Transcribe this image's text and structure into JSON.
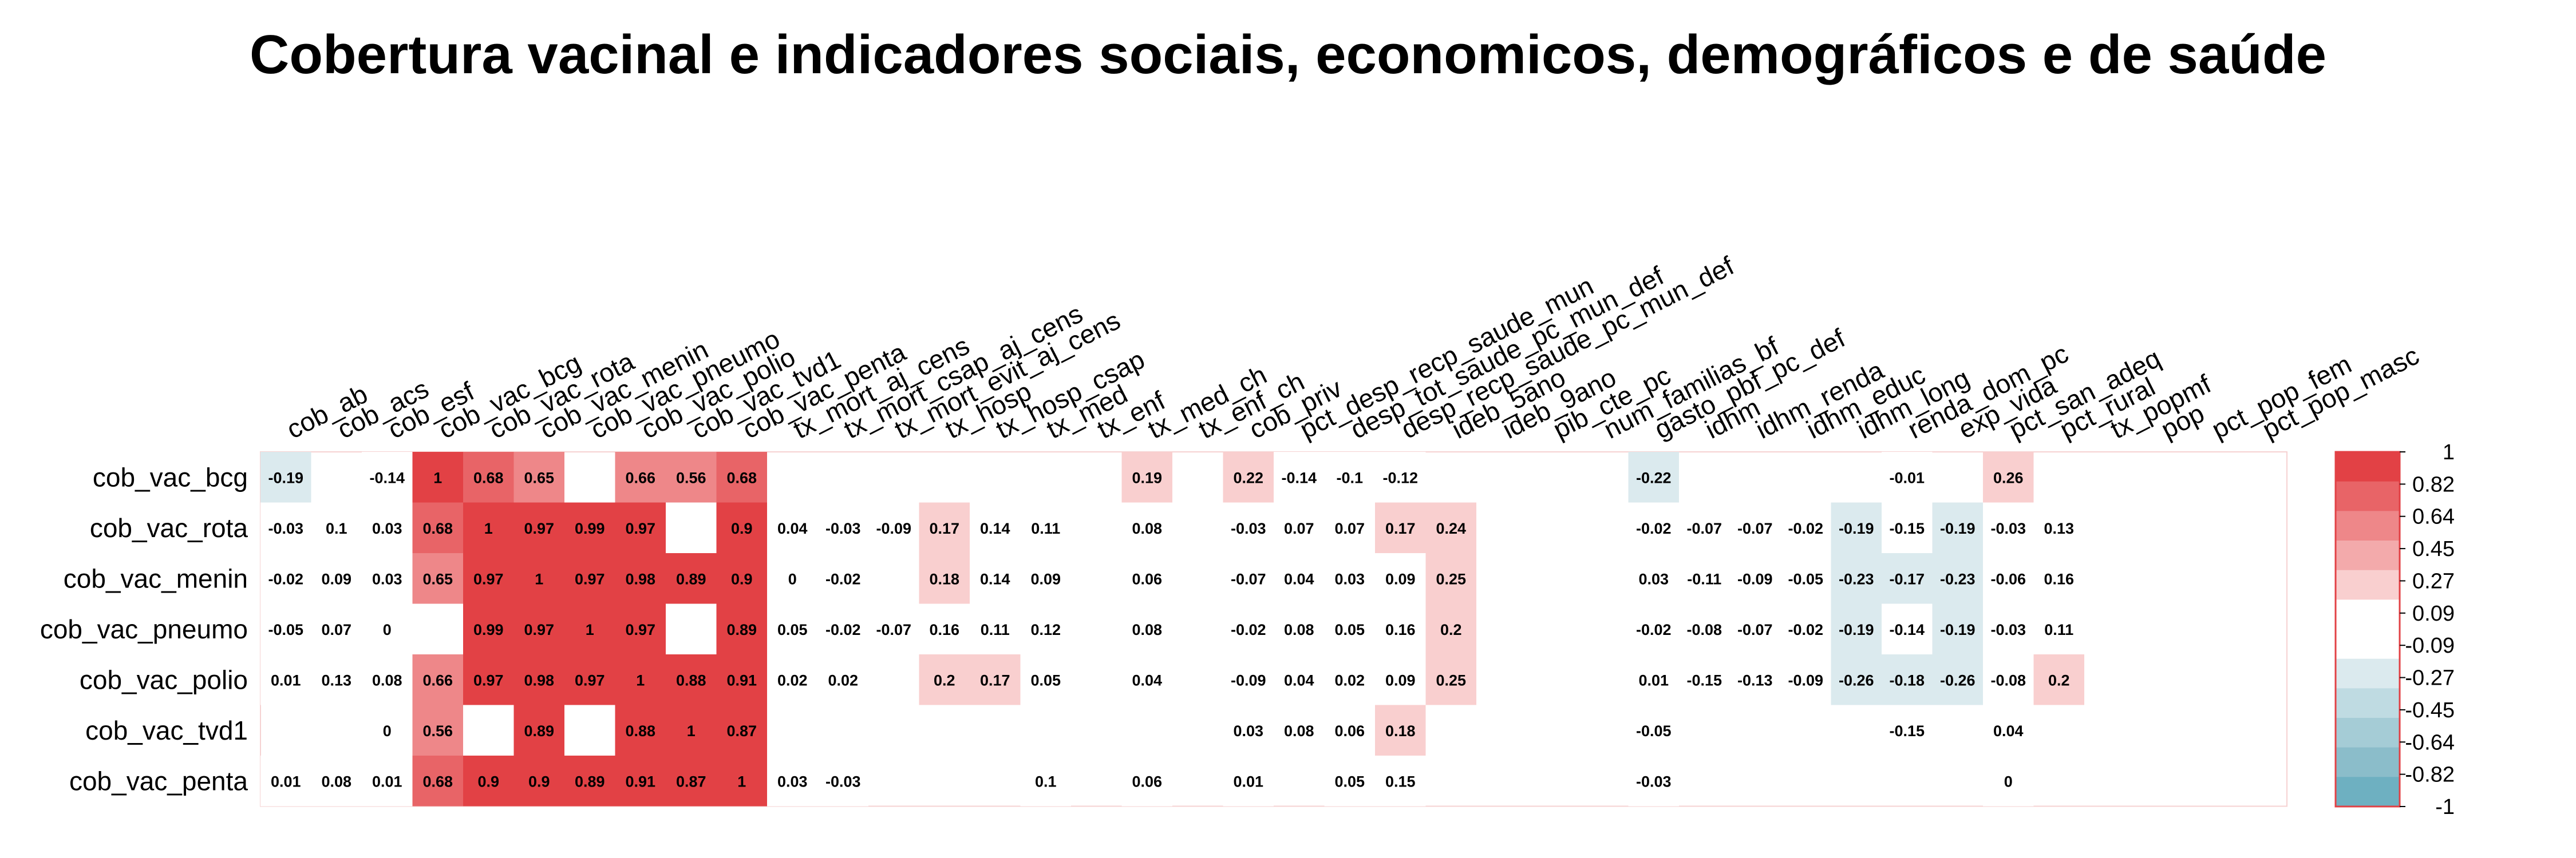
{
  "chart_data": {
    "type": "heatmap",
    "title": "Cobertura vacinal e indicadores sociais, economicos, demográficos e de saúde",
    "rows": [
      "cob_vac_bcg",
      "cob_vac_rota",
      "cob_vac_menin",
      "cob_vac_pneumo",
      "cob_vac_polio",
      "cob_vac_tvd1",
      "cob_vac_penta"
    ],
    "columns": [
      "cob_ab",
      "cob_acs",
      "cob_esf",
      "cob_vac_bcg",
      "cob_vac_rota",
      "cob_vac_menin",
      "cob_vac_pneumo",
      "cob_vac_polio",
      "cob_vac_tvd1",
      "cob_vac_penta",
      "tx_mort_aj_cens",
      "tx_mort_csap_aj_cens",
      "tx_mort_evit_aj_cens",
      "tx_hosp",
      "tx_hosp_csap",
      "tx_med",
      "tx_enf",
      "tx_med_ch",
      "tx_enf_ch",
      "cob_priv",
      "pct_desp_recp_saude_mun",
      "desp_tot_saude_pc_mun_def",
      "desp_recp_saude_pc_mun_def",
      "ideb_5ano",
      "ideb_9ano",
      "pib_cte_pc",
      "num_familias_bf",
      "gasto_pbf_pc_def",
      "idhm",
      "idhm_renda",
      "idhm_educ",
      "idhm_long",
      "renda_dom_pc",
      "exp_vida",
      "pct_san_adeq",
      "pct_rural",
      "tx_popmf",
      "pop",
      "pct_pop_fem",
      "pct_pop_masc"
    ],
    "values": [
      [
        -0.19,
        null,
        -0.14,
        1,
        0.68,
        0.65,
        null,
        0.66,
        0.56,
        0.68,
        null,
        null,
        null,
        null,
        null,
        null,
        null,
        0.19,
        null,
        0.22,
        -0.14,
        -0.1,
        -0.12,
        null,
        null,
        null,
        null,
        -0.22,
        null,
        null,
        null,
        null,
        -0.01,
        null,
        0.26,
        null,
        null,
        null,
        null,
        null
      ],
      [
        -0.03,
        0.1,
        0.03,
        0.68,
        1,
        0.97,
        0.99,
        0.97,
        null,
        0.9,
        0.04,
        -0.03,
        -0.09,
        0.17,
        0.14,
        0.11,
        null,
        0.08,
        null,
        -0.03,
        0.07,
        0.07,
        0.17,
        0.24,
        null,
        null,
        null,
        -0.02,
        -0.07,
        -0.07,
        -0.02,
        -0.19,
        -0.15,
        -0.19,
        -0.03,
        0.13,
        null,
        null,
        null,
        null
      ],
      [
        -0.02,
        0.09,
        0.03,
        0.65,
        0.97,
        1,
        0.97,
        0.98,
        0.89,
        0.9,
        0,
        -0.02,
        null,
        0.18,
        0.14,
        0.09,
        null,
        0.06,
        null,
        -0.07,
        0.04,
        0.03,
        0.09,
        0.25,
        null,
        null,
        null,
        0.03,
        -0.11,
        -0.09,
        -0.05,
        -0.23,
        -0.17,
        -0.23,
        -0.06,
        0.16,
        null,
        null,
        null,
        null
      ],
      [
        -0.05,
        0.07,
        0,
        null,
        0.99,
        0.97,
        1,
        0.97,
        null,
        0.89,
        0.05,
        -0.02,
        -0.07,
        0.16,
        0.11,
        0.12,
        null,
        0.08,
        null,
        -0.02,
        0.08,
        0.05,
        0.16,
        0.2,
        null,
        null,
        null,
        -0.02,
        -0.08,
        -0.07,
        -0.02,
        -0.19,
        -0.14,
        -0.19,
        -0.03,
        0.11,
        null,
        null,
        null,
        null
      ],
      [
        0.01,
        0.13,
        0.08,
        0.66,
        0.97,
        0.98,
        0.97,
        1,
        0.88,
        0.91,
        0.02,
        0.02,
        null,
        0.2,
        0.17,
        0.05,
        null,
        0.04,
        null,
        -0.09,
        0.04,
        0.02,
        0.09,
        0.25,
        null,
        null,
        null,
        0.01,
        -0.15,
        -0.13,
        -0.09,
        -0.26,
        -0.18,
        -0.26,
        -0.08,
        0.2,
        null,
        null,
        null,
        null
      ],
      [
        null,
        null,
        0,
        0.56,
        null,
        0.89,
        null,
        0.88,
        1,
        0.87,
        null,
        null,
        null,
        null,
        null,
        null,
        null,
        null,
        null,
        0.03,
        0.08,
        0.06,
        0.18,
        null,
        null,
        null,
        null,
        -0.05,
        null,
        null,
        null,
        null,
        -0.15,
        null,
        0.04,
        null,
        null,
        null,
        null,
        null
      ],
      [
        0.01,
        0.08,
        0.01,
        0.68,
        0.9,
        0.9,
        0.89,
        0.91,
        0.87,
        1,
        0.03,
        -0.03,
        null,
        null,
        null,
        0.1,
        null,
        0.06,
        null,
        0.01,
        null,
        0.05,
        0.15,
        null,
        null,
        null,
        null,
        -0.03,
        null,
        null,
        null,
        null,
        null,
        null,
        0,
        null,
        null,
        null,
        null,
        null
      ]
    ],
    "legend": {
      "tick_labels": [
        "1",
        "0.82",
        "0.64",
        "0.45",
        "0.27",
        "0.09",
        "-0.09",
        "-0.27",
        "-0.45",
        "-0.64",
        "-0.82",
        "-1"
      ],
      "range": [
        -1,
        1
      ],
      "position": "right"
    },
    "colors": {
      "bands": [
        "#e24145",
        "#e86467",
        "#ee8789",
        "#f3aaab",
        "#f9cfcf",
        "#ffffff",
        "#ffffff",
        "#dbeaee",
        "#bfdbe2",
        "#a5ccd6",
        "#8bbdca",
        "#6eb0c1"
      ],
      "text": "#000000"
    }
  }
}
